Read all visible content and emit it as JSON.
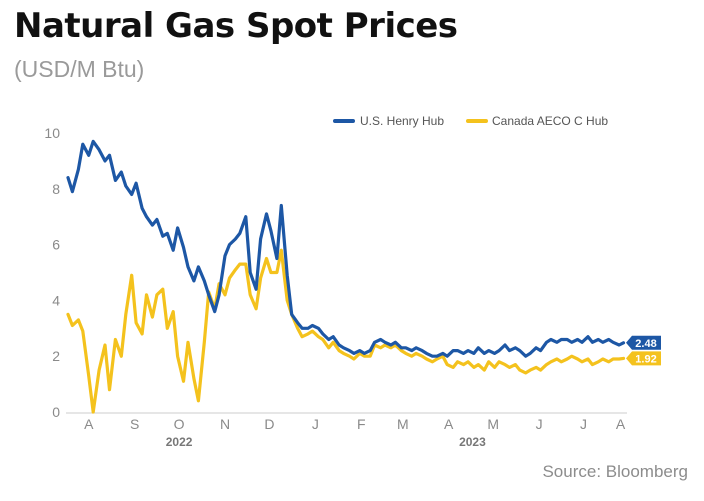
{
  "title": "Natural Gas Spot Prices",
  "subtitle": "(USD/M Btu)",
  "source": "Source: Bloomberg",
  "chart_data": {
    "type": "line",
    "ylim": [
      0,
      10
    ],
    "y_ticks": [
      0,
      2,
      4,
      6,
      8,
      10
    ],
    "x_ticks": [
      "A",
      "S",
      "O",
      "N",
      "D",
      "J",
      "F",
      "M",
      "A",
      "M",
      "J",
      "J",
      "A"
    ],
    "year_labels": [
      "2022",
      "2023"
    ],
    "x_domain": [
      "2022-08-01",
      "2023-08-12"
    ],
    "grid": false,
    "legend_position": "top-right",
    "series": [
      {
        "name": "U.S. Henry Hub",
        "color": "#1d57a5",
        "end_label": "2.48",
        "x": [
          "2022-08-01",
          "2022-08-04",
          "2022-08-08",
          "2022-08-11",
          "2022-08-15",
          "2022-08-18",
          "2022-08-22",
          "2022-08-26",
          "2022-08-29",
          "2022-09-02",
          "2022-09-06",
          "2022-09-09",
          "2022-09-13",
          "2022-09-16",
          "2022-09-20",
          "2022-09-23",
          "2022-09-27",
          "2022-09-30",
          "2022-10-04",
          "2022-10-07",
          "2022-10-11",
          "2022-10-14",
          "2022-10-18",
          "2022-10-21",
          "2022-10-25",
          "2022-10-28",
          "2022-11-01",
          "2022-11-04",
          "2022-11-08",
          "2022-11-11",
          "2022-11-15",
          "2022-11-18",
          "2022-11-22",
          "2022-11-25",
          "2022-11-29",
          "2022-12-02",
          "2022-12-06",
          "2022-12-09",
          "2022-12-13",
          "2022-12-16",
          "2022-12-20",
          "2022-12-23",
          "2022-12-27",
          "2022-12-30",
          "2023-01-03",
          "2023-01-06",
          "2023-01-10",
          "2023-01-13",
          "2023-01-17",
          "2023-01-20",
          "2023-01-24",
          "2023-01-27",
          "2023-01-31",
          "2023-02-03",
          "2023-02-07",
          "2023-02-10",
          "2023-02-14",
          "2023-02-17",
          "2023-02-21",
          "2023-02-24",
          "2023-02-28",
          "2023-03-03",
          "2023-03-07",
          "2023-03-10",
          "2023-03-14",
          "2023-03-17",
          "2023-03-21",
          "2023-03-24",
          "2023-03-28",
          "2023-03-31",
          "2023-04-04",
          "2023-04-07",
          "2023-04-11",
          "2023-04-14",
          "2023-04-18",
          "2023-04-21",
          "2023-04-25",
          "2023-04-28",
          "2023-05-02",
          "2023-05-05",
          "2023-05-09",
          "2023-05-12",
          "2023-05-16",
          "2023-05-19",
          "2023-05-23",
          "2023-05-26",
          "2023-05-30",
          "2023-06-02",
          "2023-06-06",
          "2023-06-09",
          "2023-06-13",
          "2023-06-16",
          "2023-06-20",
          "2023-06-23",
          "2023-06-27",
          "2023-06-30",
          "2023-07-04",
          "2023-07-07",
          "2023-07-11",
          "2023-07-14",
          "2023-07-18",
          "2023-07-21",
          "2023-07-25",
          "2023-07-28",
          "2023-08-01",
          "2023-08-04",
          "2023-08-08",
          "2023-08-11"
        ],
        "y": [
          8.4,
          7.9,
          8.7,
          9.6,
          9.2,
          9.7,
          9.4,
          9.0,
          9.2,
          8.3,
          8.6,
          8.1,
          7.8,
          8.2,
          7.3,
          7.0,
          6.7,
          6.9,
          6.3,
          6.4,
          5.8,
          6.6,
          5.9,
          5.2,
          4.7,
          5.2,
          4.7,
          4.2,
          3.6,
          4.2,
          5.6,
          6.0,
          6.2,
          6.4,
          7.0,
          5.0,
          4.4,
          6.2,
          7.1,
          6.5,
          5.5,
          7.4,
          4.9,
          3.5,
          3.2,
          3.0,
          3.0,
          3.1,
          3.0,
          2.8,
          2.6,
          2.7,
          2.4,
          2.3,
          2.2,
          2.1,
          2.2,
          2.1,
          2.2,
          2.5,
          2.6,
          2.5,
          2.4,
          2.5,
          2.3,
          2.3,
          2.2,
          2.3,
          2.2,
          2.1,
          2.0,
          2.0,
          2.1,
          2.0,
          2.2,
          2.2,
          2.1,
          2.2,
          2.1,
          2.3,
          2.1,
          2.2,
          2.1,
          2.2,
          2.4,
          2.2,
          2.3,
          2.2,
          2.0,
          2.1,
          2.3,
          2.2,
          2.5,
          2.6,
          2.5,
          2.6,
          2.6,
          2.5,
          2.6,
          2.5,
          2.7,
          2.5,
          2.6,
          2.5,
          2.6,
          2.5,
          2.4,
          2.48
        ]
      },
      {
        "name": "Canada AECO C Hub",
        "color": "#f4c21d",
        "end_label": "1.92",
        "x": [
          "2022-08-01",
          "2022-08-04",
          "2022-08-08",
          "2022-08-11",
          "2022-08-15",
          "2022-08-18",
          "2022-08-22",
          "2022-08-26",
          "2022-08-29",
          "2022-09-02",
          "2022-09-06",
          "2022-09-09",
          "2022-09-13",
          "2022-09-16",
          "2022-09-20",
          "2022-09-23",
          "2022-09-27",
          "2022-09-30",
          "2022-10-04",
          "2022-10-07",
          "2022-10-11",
          "2022-10-14",
          "2022-10-18",
          "2022-10-21",
          "2022-10-25",
          "2022-10-28",
          "2022-11-01",
          "2022-11-04",
          "2022-11-08",
          "2022-11-11",
          "2022-11-15",
          "2022-11-18",
          "2022-11-22",
          "2022-11-25",
          "2022-11-29",
          "2022-12-02",
          "2022-12-06",
          "2022-12-09",
          "2022-12-13",
          "2022-12-16",
          "2022-12-20",
          "2022-12-23",
          "2022-12-27",
          "2022-12-30",
          "2023-01-03",
          "2023-01-06",
          "2023-01-10",
          "2023-01-13",
          "2023-01-17",
          "2023-01-20",
          "2023-01-24",
          "2023-01-27",
          "2023-01-31",
          "2023-02-03",
          "2023-02-07",
          "2023-02-10",
          "2023-02-14",
          "2023-02-17",
          "2023-02-21",
          "2023-02-24",
          "2023-02-28",
          "2023-03-03",
          "2023-03-07",
          "2023-03-10",
          "2023-03-14",
          "2023-03-17",
          "2023-03-21",
          "2023-03-24",
          "2023-03-28",
          "2023-03-31",
          "2023-04-04",
          "2023-04-07",
          "2023-04-11",
          "2023-04-14",
          "2023-04-18",
          "2023-04-21",
          "2023-04-25",
          "2023-04-28",
          "2023-05-02",
          "2023-05-05",
          "2023-05-09",
          "2023-05-12",
          "2023-05-16",
          "2023-05-19",
          "2023-05-23",
          "2023-05-26",
          "2023-05-30",
          "2023-06-02",
          "2023-06-06",
          "2023-06-09",
          "2023-06-13",
          "2023-06-16",
          "2023-06-20",
          "2023-06-23",
          "2023-06-27",
          "2023-06-30",
          "2023-07-04",
          "2023-07-07",
          "2023-07-11",
          "2023-07-14",
          "2023-07-18",
          "2023-07-21",
          "2023-07-25",
          "2023-07-28",
          "2023-08-01",
          "2023-08-04",
          "2023-08-08",
          "2023-08-11"
        ],
        "y": [
          3.5,
          3.1,
          3.3,
          2.9,
          1.3,
          0.0,
          1.5,
          2.4,
          0.8,
          2.6,
          2.0,
          3.5,
          4.9,
          3.2,
          2.8,
          4.2,
          3.4,
          4.2,
          4.4,
          3.0,
          3.6,
          2.0,
          1.1,
          2.5,
          1.2,
          0.4,
          2.5,
          4.3,
          3.7,
          4.6,
          4.2,
          4.8,
          5.1,
          5.3,
          5.3,
          4.2,
          3.7,
          4.8,
          5.5,
          5.0,
          5.0,
          5.8,
          4.0,
          3.5,
          3.0,
          2.7,
          2.8,
          2.9,
          2.7,
          2.6,
          2.3,
          2.5,
          2.2,
          2.1,
          2.0,
          1.9,
          2.1,
          2.0,
          2.0,
          2.4,
          2.3,
          2.4,
          2.3,
          2.4,
          2.2,
          2.1,
          2.0,
          2.1,
          2.0,
          1.9,
          1.8,
          1.9,
          2.0,
          1.7,
          1.6,
          1.8,
          1.7,
          1.8,
          1.6,
          1.7,
          1.5,
          1.8,
          1.6,
          1.8,
          1.7,
          1.6,
          1.7,
          1.5,
          1.4,
          1.5,
          1.6,
          1.5,
          1.7,
          1.8,
          1.9,
          1.8,
          1.9,
          2.0,
          1.9,
          1.8,
          1.9,
          1.7,
          1.8,
          1.9,
          1.8,
          1.9,
          1.9,
          1.92
        ]
      }
    ]
  }
}
